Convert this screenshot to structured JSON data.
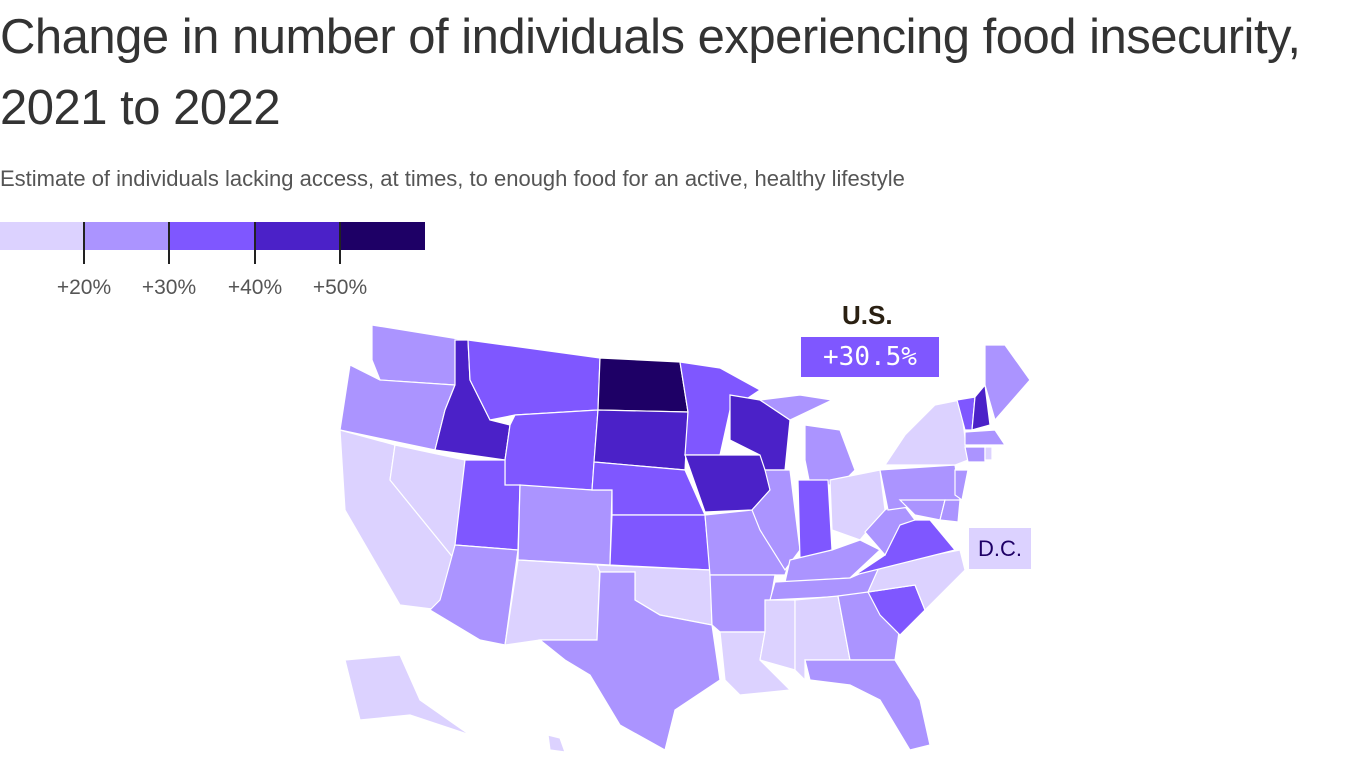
{
  "title": "Change in number of individuals experiencing food insecurity, 2021 to 2022",
  "subtitle": "Estimate of individuals lacking access, at times, to enough food for an active, healthy lifestyle",
  "legend": {
    "colors": [
      "#dcd2ff",
      "#ab94ff",
      "#7f57ff",
      "#4b21c8",
      "#1e0066"
    ],
    "thresholds": [
      "+20%",
      "+30%",
      "+40%",
      "+50%"
    ]
  },
  "us": {
    "label": "U.S.",
    "value": "+30.5%"
  },
  "dc": {
    "label": "D.C.",
    "bin": 0
  },
  "chart_data": {
    "type": "choropleth",
    "title": "Change in number of individuals experiencing food insecurity, 2021 to 2022",
    "bins": [
      "<+20%",
      "+20–30%",
      "+30–40%",
      "+40–50%",
      ">+50%"
    ],
    "state_bins": {
      "WA": 1,
      "OR": 1,
      "CA": 0,
      "NV": 0,
      "ID": 3,
      "MT": 2,
      "WY": 2,
      "UT": 2,
      "CO": 1,
      "AZ": 1,
      "NM": 0,
      "ND": 4,
      "SD": 3,
      "NE": 2,
      "KS": 2,
      "OK": 0,
      "TX": 1,
      "MN": 2,
      "IA": 3,
      "MO": 1,
      "AR": 1,
      "LA": 0,
      "WI": 3,
      "IL": 1,
      "MI": 1,
      "IN": 2,
      "OH": 0,
      "KY": 1,
      "TN": 1,
      "MS": 0,
      "AL": 0,
      "GA": 1,
      "FL": 1,
      "SC": 2,
      "NC": 0,
      "VA": 2,
      "WV": 1,
      "PA": 1,
      "NY": 0,
      "NJ": 1,
      "MD": 1,
      "DE": 1,
      "VT": 2,
      "NH": 3,
      "ME": 1,
      "MA": 1,
      "CT": 1,
      "RI": 0,
      "AK": 0,
      "HI": 0,
      "DC": 0
    },
    "us_change": "+30.5%"
  }
}
